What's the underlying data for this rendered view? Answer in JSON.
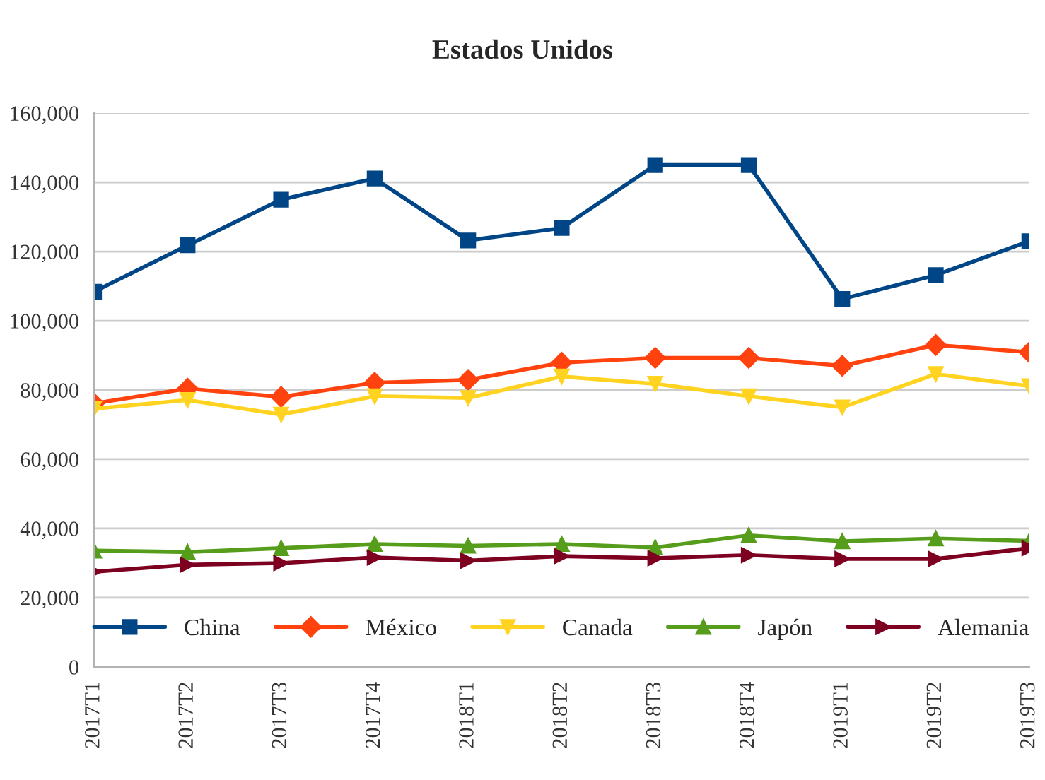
{
  "chart_data": {
    "type": "line",
    "title": "Estados Unidos",
    "categories": [
      "2017T1",
      "2017T2",
      "2017T3",
      "2017T4",
      "2018T1",
      "2018T2",
      "2018T3",
      "2018T4",
      "2019T1",
      "2019T2",
      "2019T3"
    ],
    "series": [
      {
        "name": "China",
        "color": "#004586",
        "marker": "square",
        "values": [
          108400,
          121800,
          135000,
          141100,
          123200,
          126800,
          145000,
          145000,
          106300,
          113200,
          123000
        ]
      },
      {
        "name": "México",
        "color": "#ff420e",
        "marker": "diamond",
        "values": [
          76100,
          80400,
          78000,
          82100,
          82900,
          87900,
          89300,
          89300,
          87000,
          93000,
          90900
        ]
      },
      {
        "name": "Canada",
        "color": "#ffd320",
        "marker": "triangle_down",
        "values": [
          74600,
          77100,
          72900,
          78200,
          77700,
          83900,
          81800,
          78200,
          75000,
          84600,
          81100
        ]
      },
      {
        "name": "Japón",
        "color": "#579d1c",
        "marker": "triangle",
        "values": [
          33600,
          33200,
          34300,
          35500,
          35000,
          35500,
          34500,
          38000,
          36300,
          37100,
          36400
        ]
      },
      {
        "name": "Alemania",
        "color": "#7e0021",
        "marker": "triangle_right",
        "values": [
          27500,
          29500,
          30000,
          31600,
          30700,
          32000,
          31400,
          32300,
          31200,
          31200,
          34300
        ]
      }
    ],
    "ylim": [
      0,
      160000
    ],
    "yticks": [
      {
        "value": 0,
        "label": "0"
      },
      {
        "value": 20000,
        "label": "20,000"
      },
      {
        "value": 40000,
        "label": "40,000"
      },
      {
        "value": 60000,
        "label": "60,000"
      },
      {
        "value": 80000,
        "label": "80,000"
      },
      {
        "value": 100000,
        "label": "100,000"
      },
      {
        "value": 120000,
        "label": "120,000"
      },
      {
        "value": 140000,
        "label": "140,000"
      },
      {
        "value": 160000,
        "label": "160,000"
      }
    ],
    "grid": "y",
    "legend": "bottom",
    "line_style": "solid"
  }
}
